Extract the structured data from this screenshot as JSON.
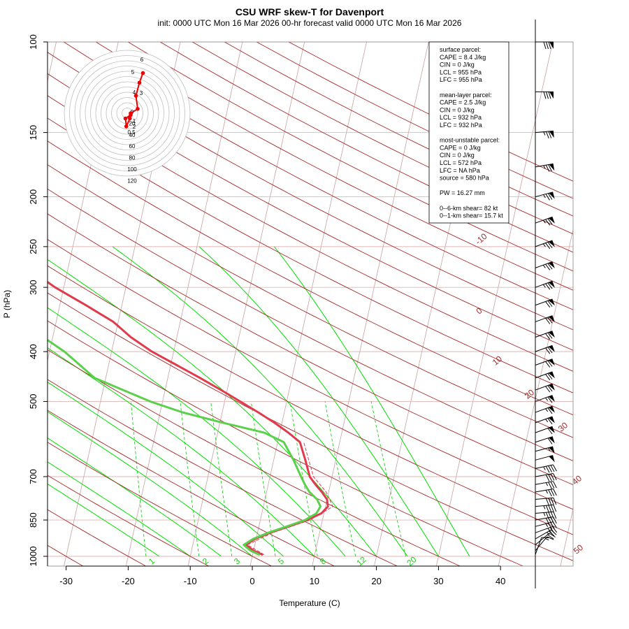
{
  "chart_data": {
    "type": "line",
    "title": "CSU WRF skew-T for Davenport",
    "subtitle": "init: 0000 UTC Mon 16 Mar 2026     00-hr forecast valid 0000 UTC Mon 16 Mar 2026",
    "xlabel": "Temperature (C)",
    "ylabel": "P (hPa)",
    "x_ticks": [
      -30,
      -20,
      -10,
      0,
      10,
      20,
      30,
      40
    ],
    "x_tick_labels": [
      "-30",
      "-20",
      "-10",
      "0",
      "10",
      "20",
      "30",
      "40"
    ],
    "y_ticks": [
      100,
      150,
      200,
      250,
      300,
      400,
      500,
      700,
      850,
      1000
    ],
    "y_tick_labels": [
      "100",
      "150",
      "200",
      "250",
      "300",
      "400",
      "500",
      "700",
      "850",
      "1000"
    ],
    "xlim": [
      -33,
      45
    ],
    "ylim": [
      1050,
      100
    ],
    "y_scale": "log",
    "grid": true,
    "isotherm_labels": [
      "-10",
      "0",
      "10",
      "20",
      "30",
      "40",
      "50"
    ],
    "mixing_ratio_labels": [
      "1",
      "2",
      "3",
      "5",
      "8",
      "12",
      "20"
    ],
    "series": [
      {
        "name": "",
        "color": "#e03b4d",
        "pressure": [
          992,
          975,
          950,
          925,
          900,
          875,
          850,
          825,
          800,
          775,
          750,
          725,
          700,
          650,
          600,
          575,
          550,
          525,
          500,
          475,
          450,
          425,
          400,
          375,
          350,
          325,
          300,
          275,
          250,
          225,
          200,
          175,
          150,
          125,
          100
        ],
        "temperature": [
          1.5,
          0.0,
          -1.5,
          -0.2,
          2.0,
          4.8,
          7.5,
          9.6,
          10.4,
          10.0,
          8.9,
          7.6,
          6.4,
          5.1,
          3.6,
          1.4,
          -1.2,
          -4.2,
          -7.5,
          -11.0,
          -14.8,
          -19.0,
          -23.5,
          -27.4,
          -30.8,
          -35.8,
          -41.4,
          -46.6,
          -51.6,
          -54.3,
          -55.5,
          -56.7,
          -55.5,
          -57.8,
          -60.4
        ]
      },
      {
        "name": "",
        "color": "#5ccf4c",
        "pressure": [
          992,
          975,
          950,
          925,
          900,
          875,
          850,
          825,
          800,
          775,
          750,
          725,
          700,
          650,
          600,
          575,
          550,
          525,
          500,
          475,
          450,
          425,
          400,
          375,
          350,
          325,
          300,
          275,
          250,
          225,
          200,
          175,
          150,
          125,
          100
        ],
        "dewpoint": [
          1.0,
          -0.5,
          -1.8,
          -0.5,
          1.7,
          4.5,
          7.2,
          8.8,
          9.2,
          8.4,
          6.9,
          5.9,
          5.0,
          3.2,
          1.0,
          -2.5,
          -9.5,
          -16.4,
          -22.0,
          -26.8,
          -31.8,
          -34.6,
          -37.6,
          -41.5,
          -45.0,
          -49.2,
          -54.2,
          -58.3,
          -62.6,
          -66.1,
          -72.8,
          -81.1,
          -92.2,
          -93.2,
          -94.7
        ]
      },
      {
        "name": "",
        "style": "dashed",
        "color": "#e03b4d",
        "pressure": [
          992,
          950,
          900,
          850,
          800,
          750,
          700,
          600
        ],
        "temperature": [
          1.8,
          -1.2,
          2.4,
          8.0,
          11.2,
          9.6,
          7.0,
          4.2
        ]
      }
    ],
    "hodograph": {
      "ring_labels": [
        "0",
        "20",
        "40",
        "60",
        "80",
        "100",
        "120"
      ],
      "height_labels": [
        "0.5",
        "1",
        "2",
        "3",
        "4",
        "5",
        "6"
      ],
      "u": [
        2.0,
        -1.0,
        -0.5,
        1.5,
        2.0,
        6.0,
        5.0,
        7.0,
        9.0
      ],
      "v": [
        -1.0,
        -3.0,
        -7.5,
        -3.0,
        0.0,
        2.5,
        10.0,
        17.5,
        23.0
      ]
    },
    "legend": {
      "lines": [
        "surface parcel:",
        "CAPE = 8.4 J/kg",
        "CIN = 0 J/kg",
        "LCL = 955 hPa",
        "LFC = 955 hPa",
        "",
        "mean-layer parcel:",
        "CAPE = 2.5 J/kg",
        "CIN = 0 J/kg",
        "LCL = 932 hPa",
        "LFC = 932 hPa",
        "",
        "most-unstable parcel:",
        "CAPE = 0 J/kg",
        "CIN = 0 J/kg",
        "LCL = 572 hPa",
        "LFC = NA hPa",
        "source = 580 hPa",
        "",
        "PW =  16.27 mm",
        "",
        "0--6-km shear= 82 kt",
        "0--1-km shear= 15.7 kt"
      ]
    },
    "wind_barbs": {
      "pressure": [
        992,
        975,
        950,
        925,
        900,
        875,
        850,
        825,
        800,
        775,
        750,
        725,
        700,
        675,
        650,
        625,
        600,
        575,
        550,
        525,
        500,
        475,
        450,
        425,
        400,
        375,
        350,
        325,
        300,
        275,
        250,
        225,
        200,
        175,
        150,
        125,
        100
      ],
      "direction": [
        200,
        220,
        230,
        240,
        250,
        255,
        260,
        265,
        265,
        265,
        260,
        260,
        260,
        258,
        255,
        255,
        252,
        250,
        250,
        250,
        250,
        250,
        250,
        250,
        250,
        250,
        250,
        250,
        250,
        250,
        250,
        250,
        255,
        260,
        265,
        270,
        270
      ],
      "speed": [
        10,
        15,
        20,
        25,
        30,
        35,
        40,
        45,
        45,
        40,
        35,
        35,
        40,
        45,
        50,
        55,
        60,
        60,
        65,
        65,
        65,
        70,
        70,
        70,
        70,
        70,
        70,
        70,
        75,
        75,
        75,
        75,
        75,
        75,
        75,
        80,
        80
      ]
    },
    "colors": {
      "dry_adiabat": "#a52a2a",
      "moist_adiabat": "#00e000",
      "mixing_ratio": "#22cc22",
      "isotherm": "#c8a0a0",
      "isobar": "#e4b4b4"
    }
  }
}
